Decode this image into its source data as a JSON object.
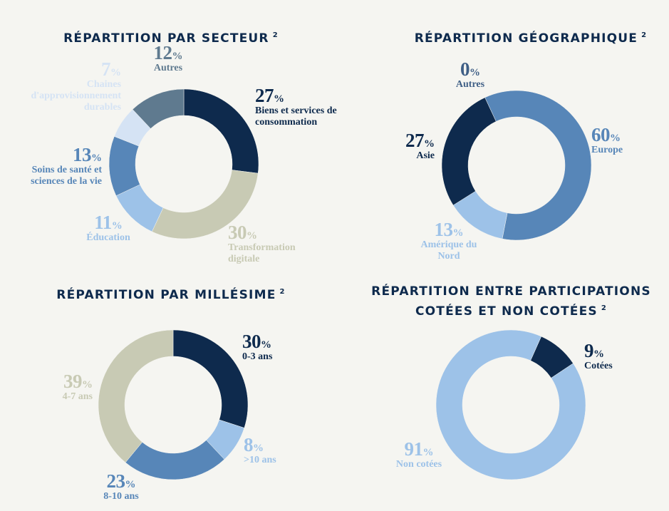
{
  "chart_data": [
    {
      "type": "pie",
      "title": "RÉPARTITION PAR SECTEUR",
      "title_note": "2",
      "unit": "%",
      "categories": [
        "Biens et services de consommation",
        "Transformation digitale",
        "Éducation",
        "Soins de santé et sciences de la vie",
        "Chaines d'approvisionnement durables",
        "Autres"
      ],
      "values": [
        27,
        30,
        11,
        13,
        7,
        12
      ],
      "colors": [
        "#0e2a4d",
        "#c8cab4",
        "#9dc2e8",
        "#5786b8",
        "#d5e3f4",
        "#5f7a8f"
      ]
    },
    {
      "type": "pie",
      "title": "RÉPARTITION GÉOGRAPHIQUE",
      "title_note": "2",
      "unit": "%",
      "categories": [
        "Europe",
        "Amérique du Nord",
        "Asie",
        "Autres"
      ],
      "values": [
        60,
        13,
        27,
        0
      ],
      "colors": [
        "#5786b8",
        "#9dc2e8",
        "#0e2a4d",
        "#3f5f86"
      ]
    },
    {
      "type": "pie",
      "title": "RÉPARTITION PAR MILLÉSIME",
      "title_note": "2",
      "unit": "%",
      "categories": [
        "0-3 ans",
        ">10 ans",
        "8-10 ans",
        "4-7 ans"
      ],
      "values": [
        30,
        8,
        23,
        39
      ],
      "colors": [
        "#0e2a4d",
        "#9dc2e8",
        "#5786b8",
        "#c8cab4"
      ]
    },
    {
      "type": "pie",
      "title": "RÉPARTITION ENTRE PARTICIPATIONS COTÉES ET NON COTÉES",
      "title_note": "2",
      "unit": "%",
      "categories": [
        "Cotées",
        "Non cotées"
      ],
      "values": [
        9,
        91
      ],
      "colors": [
        "#0e2a4d",
        "#9dc2e8"
      ]
    }
  ]
}
